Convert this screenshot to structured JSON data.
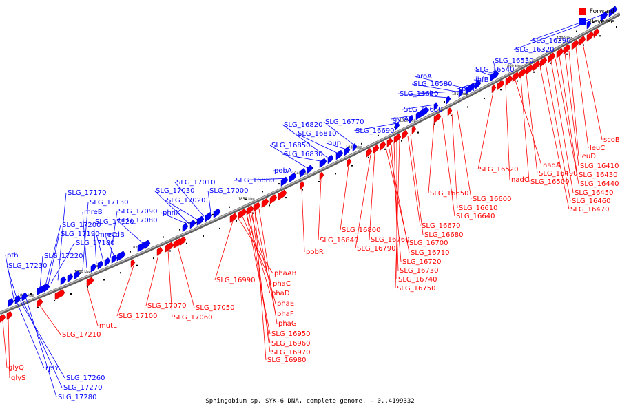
{
  "caption": "Sphingobium sp. SYK-6 DNA, complete genome. - 0..4199332",
  "legend": {
    "forward": {
      "label": "Forward",
      "color": "#ff0000"
    },
    "reverse": {
      "label": "Reverse",
      "color": "#0000ff"
    }
  },
  "axis": {
    "color": "#808080",
    "ticks": [
      "1890 kbp",
      "1880 kbp",
      "1870 kbp",
      "1860 kbp",
      "1850 kbp",
      "1840 kbp",
      "1830 kbp",
      "1820 kbp",
      "1810 kbp",
      "1800 kbp",
      "1790 kbp"
    ]
  },
  "reverse_genes": [
    "SLG_17280",
    "SLG_17270",
    "SLG_17260",
    "rplY",
    "SLG_17230",
    "pth",
    "SLG_17220",
    "SLG_17200",
    "SLG_17190",
    "SLG_17180",
    "SLG_17170",
    "mreB",
    "SLG_17130",
    "SLG_17120",
    "mreC",
    "mrdB",
    "SLG_17090",
    "SLG_17080",
    "phnX",
    "SLG_17030",
    "SLG_17020",
    "SLG_17010",
    "SLG_17000",
    "SLG_16880",
    "pobA",
    "SLG_16850",
    "SLG_16830",
    "SLG_16820",
    "SLG_16810",
    "hup",
    "SLG_16770",
    "SLG_16690",
    "gyrA",
    "SLG_16630",
    "SLG_16620",
    "cmk",
    "SLG_16580",
    "aroA",
    "rpsA",
    "ihfB",
    "SLG_16540",
    "SLG_16530",
    "SLG_16320",
    "SLG_16290"
  ],
  "forward_genes": [
    "glyQ",
    "glyS",
    "SLG_17210",
    "mutL",
    "SLG_17100",
    "SLG_17070",
    "SLG_17060",
    "SLG_17050",
    "SLG_16990",
    "phaAB",
    "phaC",
    "phaD",
    "phaE",
    "phaF",
    "phaG",
    "SLG_16950",
    "SLG_16960",
    "SLG_16970",
    "SLG_16980",
    "pobR",
    "SLG_16840",
    "SLG_16800",
    "SLG_16790",
    "SLG_16760",
    "SLG_16700",
    "SLG_16710",
    "SLG_16720",
    "SLG_16730",
    "SLG_16740",
    "SLG_16750",
    "SLG_16670",
    "SLG_16680",
    "SLG_16650",
    "SLG_16640",
    "SLG_16610",
    "SLG_16600",
    "SLG_16520",
    "nadC",
    "nadA",
    "SLG_16500",
    "SLG_16490",
    "SLG_16470",
    "SLG_16460",
    "SLG_16450",
    "SLG_16440",
    "SLG_16430",
    "SLG_16410",
    "leuD",
    "leuC",
    "scoB"
  ]
}
